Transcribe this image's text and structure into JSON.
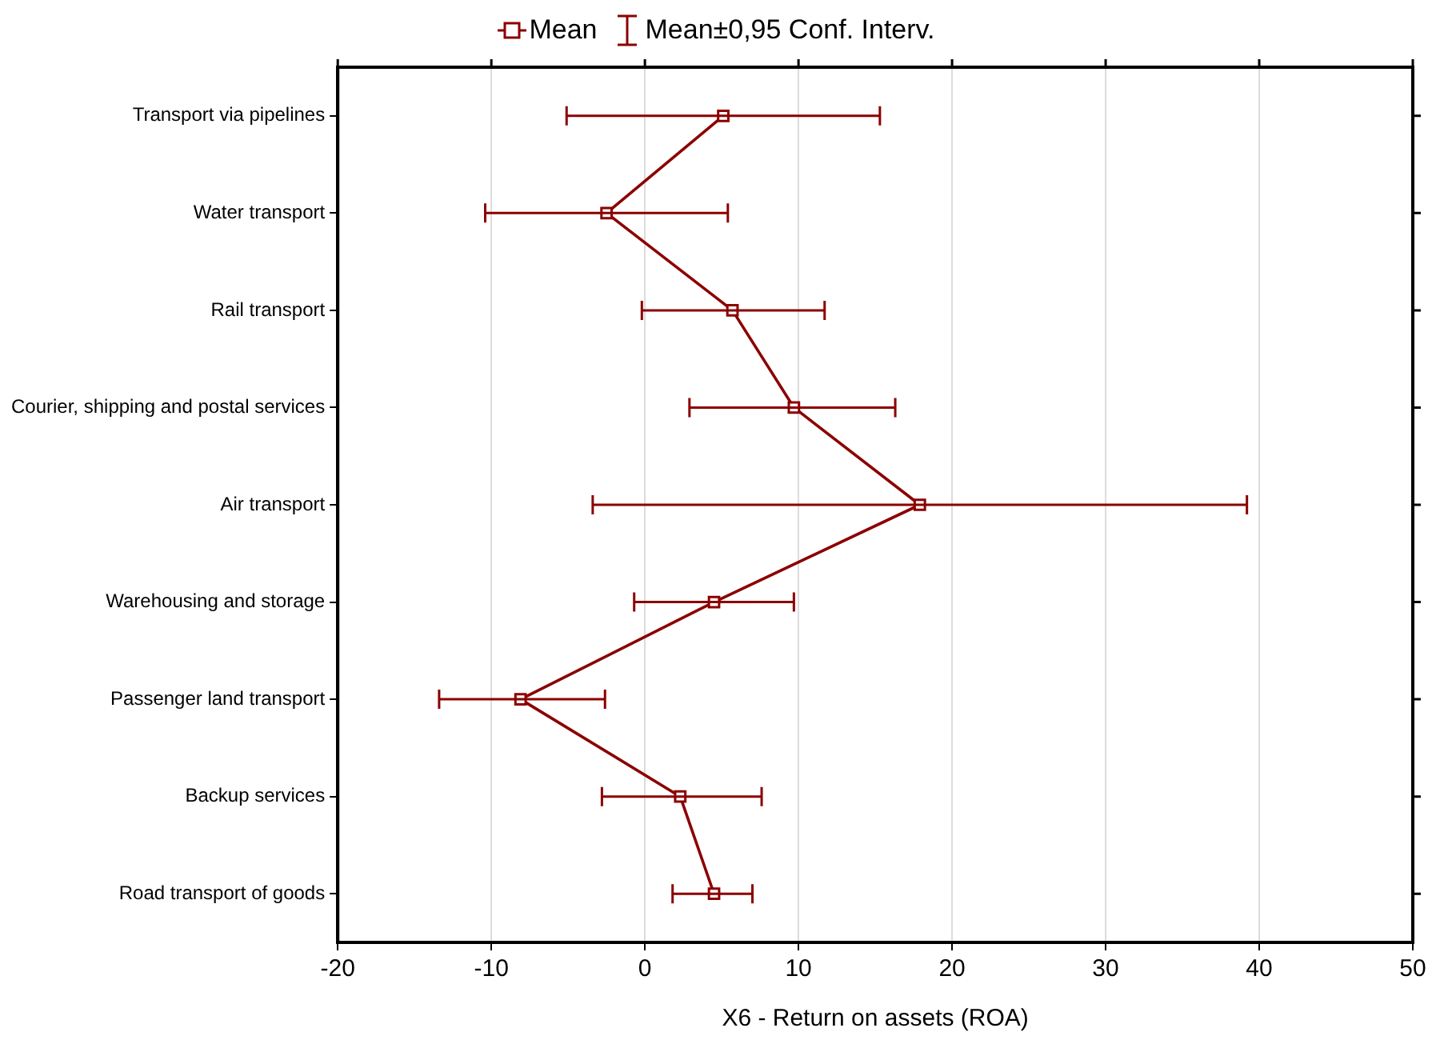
{
  "chart_data": {
    "type": "line",
    "orientation": "horizontal",
    "xlabel": "X6 - Return on assets (ROA)",
    "categories": [
      "Transport via pipelines",
      "Water transport",
      "Rail transport",
      "Courier, shipping and postal services",
      "Air transport",
      "Warehousing and storage",
      "Passenger land transport",
      "Backup services",
      "Road transport of goods"
    ],
    "series": [
      {
        "name": "Mean",
        "color": "#8b0000",
        "values": [
          5.1,
          -2.5,
          5.7,
          9.7,
          17.9,
          4.5,
          -8.1,
          2.3,
          4.5
        ],
        "errors": [
          [
            -5.1,
            15.3
          ],
          [
            -10.4,
            5.4
          ],
          [
            -0.2,
            11.7
          ],
          [
            2.9,
            16.3
          ],
          [
            -3.4,
            39.2
          ],
          [
            -0.7,
            9.7
          ],
          [
            -13.4,
            -2.6
          ],
          [
            -2.8,
            7.6
          ],
          [
            1.8,
            7.0
          ]
        ]
      }
    ],
    "annotations": [
      "Mean±0,95 Conf. Interv."
    ],
    "xlim": [
      -20,
      50
    ],
    "xticks": [
      -20,
      -10,
      0,
      10,
      20,
      30,
      40,
      50
    ],
    "grid": "x",
    "legend": "top",
    "marker": "square",
    "line_style": "solid"
  }
}
